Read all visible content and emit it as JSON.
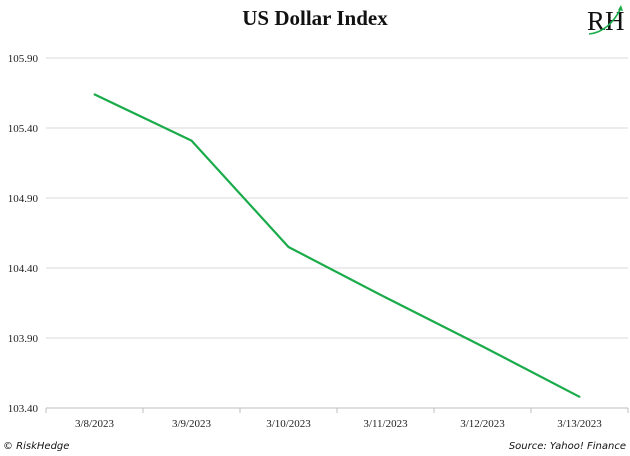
{
  "chart_data": {
    "type": "line",
    "title": "US Dollar Index",
    "xlabel": "",
    "ylabel": "",
    "categories": [
      "3/8/2023",
      "3/9/2023",
      "3/10/2023",
      "3/11/2023",
      "3/12/2023",
      "3/13/2023"
    ],
    "series": [
      {
        "name": "US Dollar Index",
        "values": [
          105.64,
          105.31,
          104.55,
          104.19,
          103.84,
          103.48
        ],
        "color": "#1aab4a"
      }
    ],
    "yticks": [
      "105.90",
      "105.40",
      "104.90",
      "104.40",
      "103.90",
      "103.40"
    ],
    "ylim": [
      103.4,
      105.9
    ],
    "grid": true,
    "legend": "none"
  },
  "logo": {
    "text": "RH"
  },
  "footer": {
    "copyright": "© RiskHedge",
    "source": "Source: Yahoo! Finance"
  }
}
